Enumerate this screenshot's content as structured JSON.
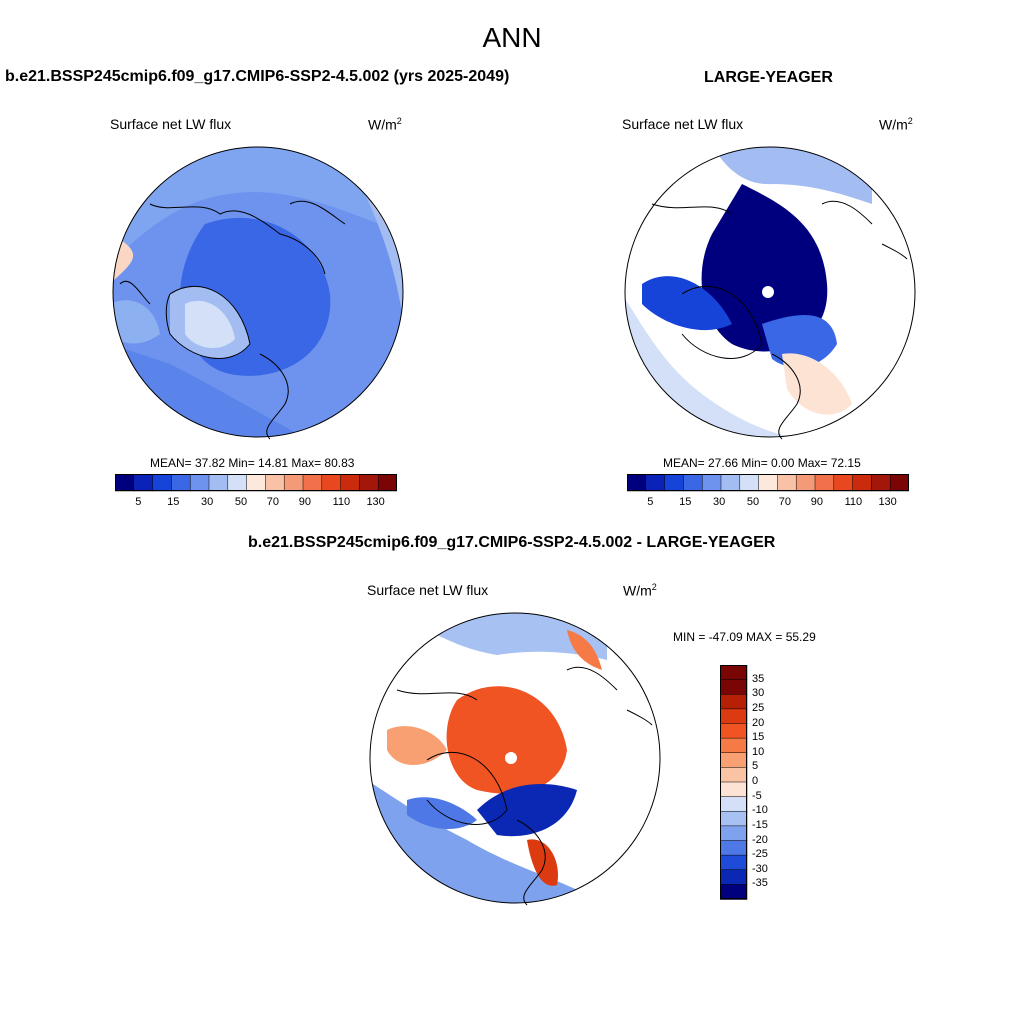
{
  "season": "ANN",
  "panels": {
    "case": {
      "title": "b.e21.BSSP245cmip6.f09_g17.CMIP6-SSP2-4.5.002 (yrs 2025-2049)",
      "variable": "Surface net LW flux",
      "units_base": "W/m",
      "units_exp": "2",
      "stats_text": "MEAN=  37.82  Min=  14.81  Max=  80.83",
      "mean": 37.82,
      "min": 14.81,
      "max": 80.83
    },
    "obs": {
      "title": "LARGE-YEAGER",
      "variable": "Surface net LW flux",
      "units_base": "W/m",
      "units_exp": "2",
      "stats_text": "MEAN=  27.66  Min=   0.00  Max=  72.15",
      "mean": 27.66,
      "min": 0.0,
      "max": 72.15
    },
    "diff": {
      "title": "b.e21.BSSP245cmip6.f09_g17.CMIP6-SSP2-4.5.002 - LARGE-YEAGER",
      "variable": "Surface net LW flux",
      "units_base": "W/m",
      "units_exp": "2",
      "stats_text": "MIN = -47.09 MAX =  55.29",
      "min": -47.09,
      "max": 55.29
    }
  },
  "colorbar_abs": {
    "labels": [
      "5",
      "15",
      "30",
      "50",
      "70",
      "90",
      "110",
      "130"
    ],
    "colors": [
      "#00007f",
      "#0a22b8",
      "#1744d8",
      "#3a67e6",
      "#6d93ee",
      "#a3bdf3",
      "#d3e0f8",
      "#fde8dc",
      "#f9c2a6",
      "#f59a76",
      "#f0714a",
      "#e8471f",
      "#c92b0c",
      "#a3170a",
      "#7a0505"
    ]
  },
  "colorbar_diff": {
    "labels": [
      "35",
      "30",
      "25",
      "20",
      "15",
      "10",
      "5",
      "0",
      "-5",
      "-10",
      "-15",
      "-20",
      "-25",
      "-30",
      "-35"
    ],
    "colors": [
      "#7a0505",
      "#b52007",
      "#dc3a11",
      "#f05423",
      "#f57a46",
      "#f8a072",
      "#fac3a3",
      "#fde3d4",
      "#d3e0f8",
      "#a7c1f3",
      "#7ea2ee",
      "#4e78e6",
      "#1e4cd8",
      "#0a28b4",
      "#00007f"
    ]
  }
}
